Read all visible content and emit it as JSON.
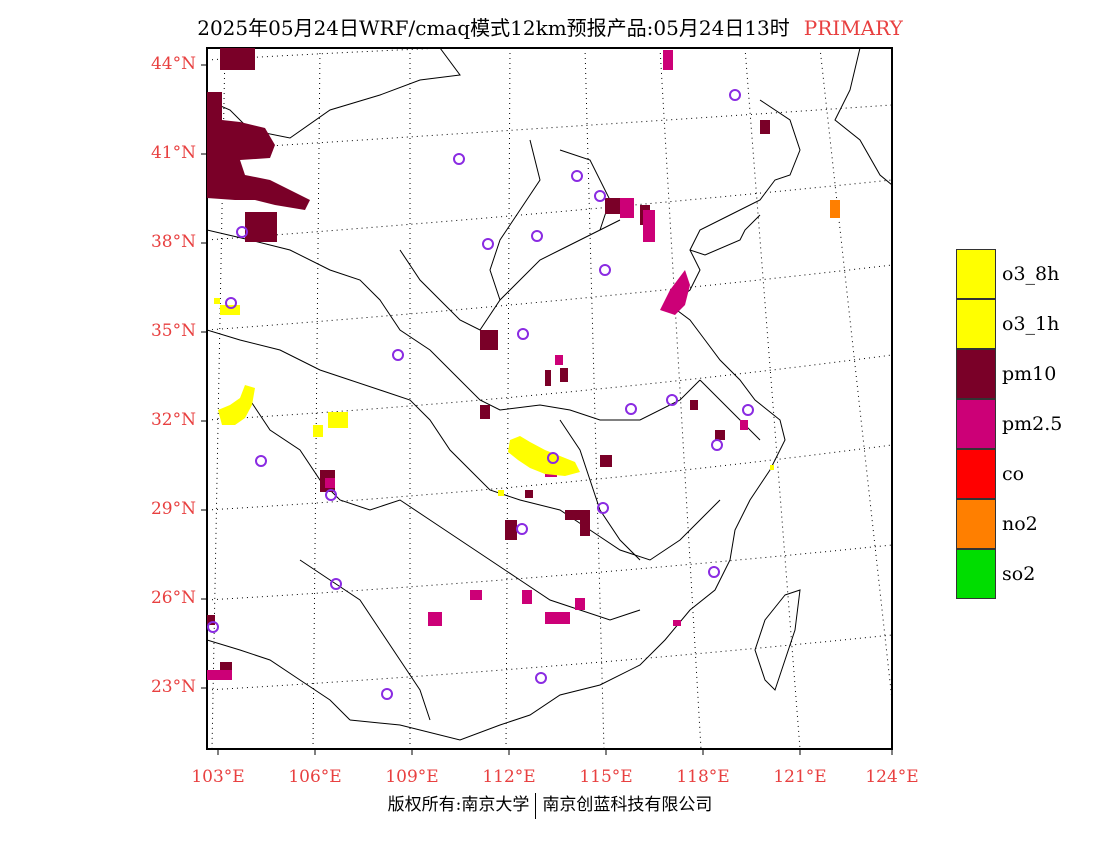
{
  "title": {
    "main": "2025年05月24日WRF/cmaq模式12km预报产品:05月24日13时",
    "tag": "PRIMARY",
    "tag_color": "#e84040"
  },
  "axes": {
    "lat_labels": [
      "44°N",
      "41°N",
      "38°N",
      "35°N",
      "32°N",
      "29°N",
      "26°N",
      "23°N"
    ],
    "lon_labels": [
      "103°E",
      "106°E",
      "109°E",
      "112°E",
      "115°E",
      "118°E",
      "121°E",
      "124°E"
    ]
  },
  "legend": {
    "items": [
      {
        "label": "o3_8h",
        "color": "#ffff00"
      },
      {
        "label": "o3_1h",
        "color": "#ffff00"
      },
      {
        "label": "pm10",
        "color": "#7a0028"
      },
      {
        "label": "pm2.5",
        "color": "#cc0077"
      },
      {
        "label": "co",
        "color": "#ff0000"
      },
      {
        "label": "no2",
        "color": "#ff7f00"
      },
      {
        "label": "so2",
        "color": "#00dd00"
      }
    ]
  },
  "footer": {
    "left": "版权所有:南京大学",
    "right": "南京创蓝科技有限公司"
  },
  "colors": {
    "label": "#e84040",
    "station_marker": "#8a2be2",
    "o3": "#ffff00",
    "pm10": "#7a0028",
    "pm25": "#cc0077",
    "no2": "#ff7f00"
  }
}
